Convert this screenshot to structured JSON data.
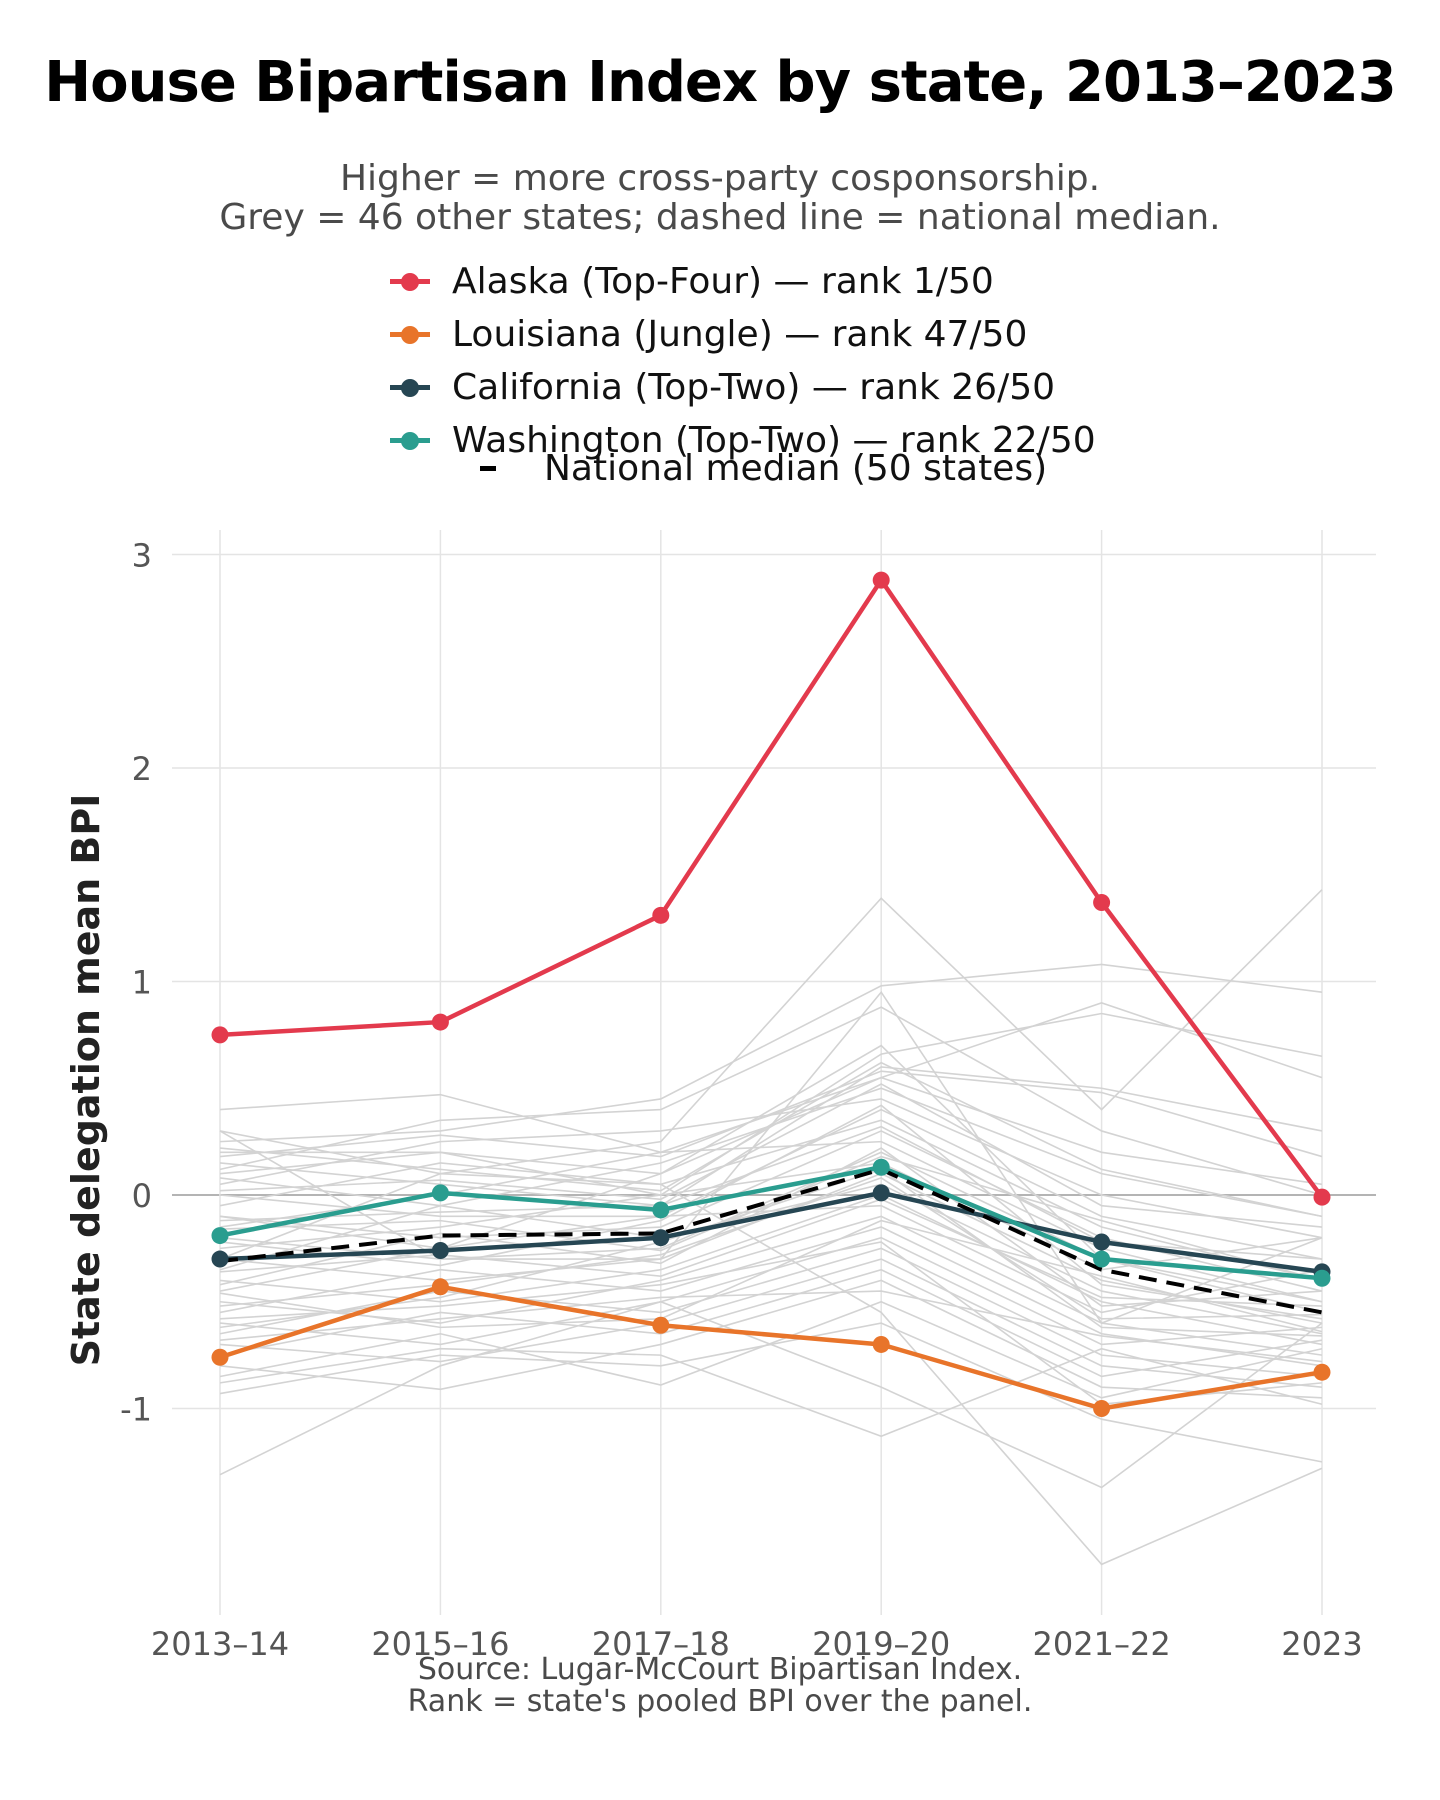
{
  "title": "House Bipartisan Index by state, 2013–2023",
  "subtitle": {
    "line1": "Higher = more cross-party cosponsorship.",
    "line2": "Grey = 46 other states; dashed line = national median."
  },
  "caption": {
    "line1": "Source: Lugar-McCourt Bipartisan Index.",
    "line2": "Rank = state's pooled BPI over the panel."
  },
  "chart_data": {
    "type": "line",
    "title": "House Bipartisan Index by state, 2013–2023",
    "xlabel": "",
    "ylabel": "State delegation mean BPI",
    "categories": [
      "2013–14",
      "2015–16",
      "2017–18",
      "2019–20",
      "2021–22",
      "2023"
    ],
    "y_ticks": [
      "-1",
      "0",
      "1",
      "2",
      "3"
    ],
    "y_tick_values": [
      -1,
      0,
      1,
      2,
      3
    ],
    "ylim": [
      -1.95,
      3.1
    ],
    "grid": true,
    "legend_position": "top",
    "series": [
      {
        "name": "Alaska (Top-Four) — rank 1/50",
        "color": "#e33a4d",
        "values": [
          0.75,
          0.81,
          1.31,
          2.88,
          1.37,
          -0.01
        ]
      },
      {
        "name": "Louisiana (Jungle) — rank 47/50",
        "color": "#e8742a",
        "values": [
          -0.76,
          -0.43,
          -0.61,
          -0.7,
          -1.0,
          -0.83
        ]
      },
      {
        "name": "California (Top-Two) — rank 26/50",
        "color": "#264653",
        "values": [
          -0.3,
          -0.26,
          -0.2,
          0.01,
          -0.22,
          -0.36
        ]
      },
      {
        "name": "Washington (Top-Two) — rank 22/50",
        "color": "#2a9d8f",
        "values": [
          -0.19,
          0.01,
          -0.07,
          0.13,
          -0.3,
          -0.39
        ]
      }
    ],
    "median": {
      "name": "National median (50 states)",
      "color": "#000000",
      "values": [
        -0.31,
        -0.19,
        -0.18,
        0.12,
        -0.35,
        -0.55
      ]
    },
    "other_states": {
      "label": "46 other states",
      "color": "#d3d3d3",
      "values": [
        [
          0.4,
          0.47,
          0.2,
          0.55,
          0.9,
          0.55
        ],
        [
          0.3,
          0.1,
          0.25,
          1.39,
          0.4,
          1.43
        ],
        [
          0.25,
          0.3,
          0.45,
          0.98,
          1.08,
          0.95
        ],
        [
          0.2,
          0.2,
          0.0,
          0.66,
          0.85,
          0.65
        ],
        [
          0.15,
          0.05,
          -0.05,
          0.6,
          0.5,
          0.3
        ],
        [
          0.1,
          0.2,
          0.1,
          0.55,
          0.2,
          0.05
        ],
        [
          0.08,
          -0.05,
          0.15,
          0.5,
          0.1,
          -0.1
        ],
        [
          0.05,
          0.25,
          0.3,
          0.45,
          0.0,
          -0.2
        ],
        [
          0.0,
          -0.1,
          -0.1,
          0.4,
          -0.1,
          -0.3
        ],
        [
          -0.05,
          0.15,
          0.05,
          0.35,
          -0.15,
          -0.4
        ],
        [
          -0.1,
          -0.2,
          -0.15,
          0.3,
          -0.2,
          -0.45
        ],
        [
          -0.15,
          0.0,
          0.2,
          0.25,
          -0.25,
          -0.5
        ],
        [
          -0.2,
          -0.3,
          -0.25,
          0.2,
          -0.3,
          -0.55
        ],
        [
          -0.25,
          -0.15,
          0.0,
          0.15,
          -0.35,
          -0.2
        ],
        [
          -0.3,
          -0.4,
          -0.3,
          0.1,
          -0.4,
          -0.6
        ],
        [
          -0.35,
          -0.05,
          -0.2,
          0.05,
          -0.45,
          -0.65
        ],
        [
          -0.4,
          -0.5,
          -0.35,
          0.0,
          -0.5,
          -0.7
        ],
        [
          -0.45,
          -0.25,
          -0.1,
          -0.05,
          -0.55,
          -0.35
        ],
        [
          -0.5,
          -0.6,
          -0.4,
          -0.1,
          -0.6,
          -0.75
        ],
        [
          -0.55,
          -0.35,
          -0.45,
          -0.15,
          -0.65,
          -0.8
        ],
        [
          -0.6,
          -0.7,
          -0.5,
          -0.2,
          -0.7,
          -0.62
        ],
        [
          -0.65,
          -0.45,
          -0.55,
          -0.25,
          -0.75,
          -0.85
        ],
        [
          -0.7,
          -0.78,
          -0.6,
          -0.3,
          -0.8,
          -0.9
        ],
        [
          -0.75,
          -0.55,
          -0.65,
          -0.35,
          -0.85,
          -0.68
        ],
        [
          -0.8,
          -0.91,
          -0.7,
          -0.4,
          -0.9,
          -0.95
        ],
        [
          -0.85,
          -0.65,
          -0.89,
          -0.5,
          -0.95,
          -0.72
        ],
        [
          -0.93,
          -0.75,
          -0.8,
          -0.6,
          -1.05,
          -1.25
        ],
        [
          -1.31,
          -0.8,
          -0.5,
          -0.9,
          -1.37,
          -0.6
        ],
        [
          0.3,
          -0.3,
          -0.3,
          0.95,
          -0.6,
          -0.2
        ],
        [
          -0.3,
          0.1,
          0.05,
          -0.55,
          -1.73,
          -1.28
        ],
        [
          0.12,
          0.35,
          0.4,
          0.88,
          0.3,
          0.0
        ],
        [
          -0.1,
          -0.25,
          0.1,
          0.7,
          -0.3,
          -0.5
        ],
        [
          0.02,
          0.07,
          -0.02,
          0.52,
          -0.05,
          -0.15
        ],
        [
          -0.22,
          -0.33,
          -0.12,
          0.42,
          -0.42,
          -0.58
        ],
        [
          -0.42,
          -0.18,
          -0.32,
          0.22,
          -0.52,
          -0.45
        ],
        [
          -0.62,
          -0.48,
          -0.22,
          0.12,
          -0.62,
          -0.66
        ],
        [
          0.22,
          0.12,
          0.02,
          0.62,
          0.12,
          -0.1
        ],
        [
          -0.12,
          -0.08,
          -0.05,
          0.32,
          -0.22,
          -0.3
        ],
        [
          -0.36,
          -0.28,
          -0.38,
          -0.02,
          -0.48,
          -0.52
        ],
        [
          -0.52,
          -0.42,
          -0.28,
          0.08,
          -0.58,
          -0.56
        ],
        [
          -0.68,
          -0.58,
          -0.48,
          -0.45,
          -0.66,
          -0.78
        ],
        [
          -0.46,
          -0.62,
          -0.58,
          -0.12,
          -0.38,
          -0.64
        ],
        [
          0.18,
          0.28,
          0.18,
          0.58,
          0.48,
          0.18
        ],
        [
          -0.16,
          -0.12,
          -0.26,
          0.18,
          -0.12,
          -0.4
        ],
        [
          -0.88,
          -0.72,
          -0.75,
          -1.13,
          -0.72,
          -0.98
        ],
        [
          -0.58,
          -0.52,
          -0.42,
          -0.22,
          -0.98,
          -0.88
        ]
      ]
    }
  }
}
